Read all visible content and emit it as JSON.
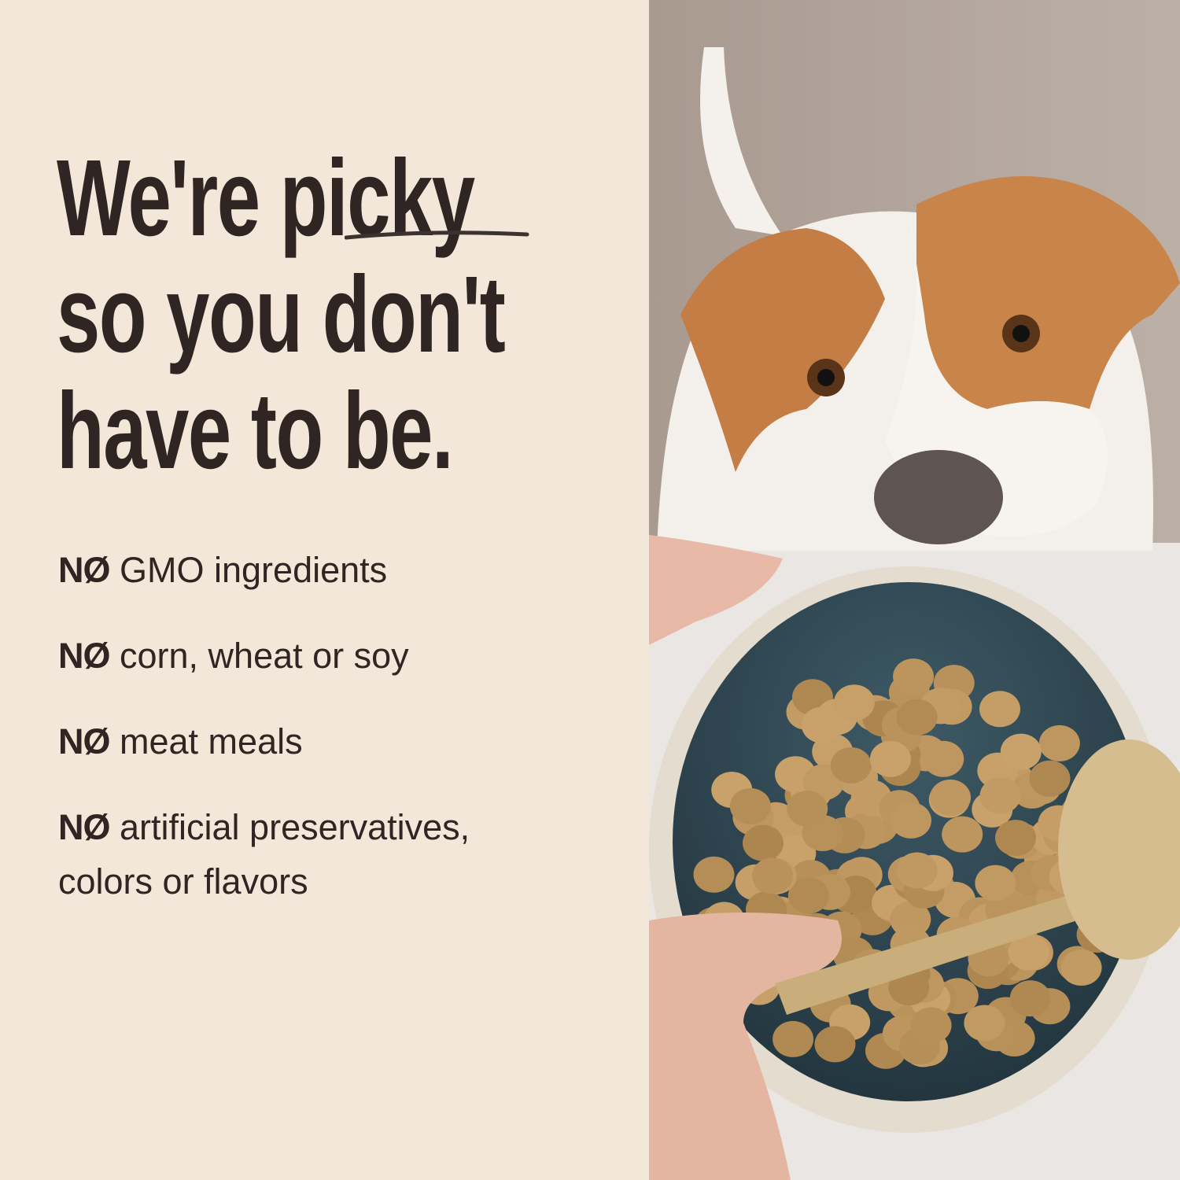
{
  "headline": {
    "line1_prefix": "We're ",
    "line1_emphasis": "picky",
    "line2": "so you don't",
    "line3": "have to be."
  },
  "claims": [
    {
      "prefix": "NØ",
      "text": "GMO ingredients"
    },
    {
      "prefix": "NØ",
      "text": "corn, wheat or soy"
    },
    {
      "prefix": "NØ",
      "text": "meat meals"
    },
    {
      "prefix": "NØ",
      "text": "artificial preservatives,",
      "text2": "colors or flavors"
    }
  ],
  "colors": {
    "background": "#f2e7d8",
    "text": "#2f2624",
    "dog_orange": "#c9844a",
    "bowl": "#2f4a55",
    "kibble": "#c9a16a"
  }
}
